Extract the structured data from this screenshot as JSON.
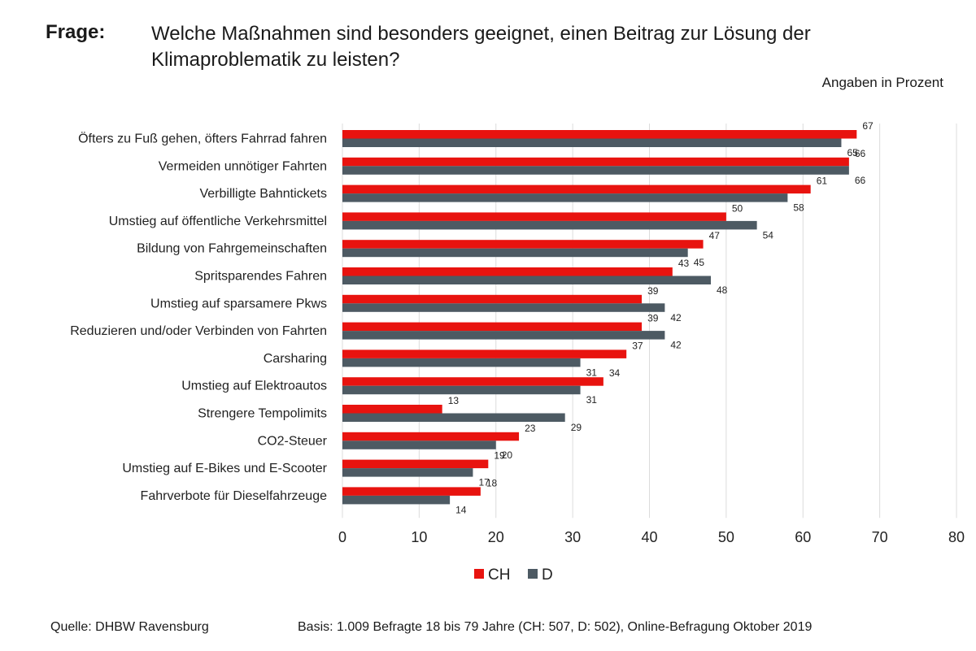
{
  "header": {
    "question_label": "Frage:",
    "question_text": "Welche Maßnahmen sind besonders geeignet, einen Beitrag zur Lösung der Klimaproblematik zu leisten?",
    "unit_note": "Angaben in Prozent"
  },
  "footer": {
    "source": "Quelle: DHBW Ravensburg",
    "basis": "Basis: 1.009 Befragte 18 bis 79 Jahre (CH: 507, D: 502),  Online-Befragung Oktober 2019"
  },
  "colors": {
    "CH": "#e8130f",
    "D": "#4d5a63",
    "grid": "#dcdcdc"
  },
  "chart_data": {
    "type": "bar",
    "orientation": "horizontal",
    "categories": [
      "Öfters zu Fuß gehen, öfters Fahrrad fahren",
      "Vermeiden unnötiger Fahrten",
      "Verbilligte Bahntickets",
      "Umstieg auf öffentliche Verkehrsmittel",
      "Bildung von Fahrgemeinschaften",
      "Spritsparendes Fahren",
      "Umstieg auf sparsamere Pkws",
      "Reduzieren und/oder Verbinden von Fahrten",
      "Carsharing",
      "Umstieg auf Elektroautos",
      "Strengere Tempolimits",
      "CO2-Steuer",
      "Umstieg auf E-Bikes und E-Scooter",
      "Fahrverbote für Dieselfahrzeuge"
    ],
    "series": [
      {
        "name": "CH",
        "values": [
          67,
          66,
          61,
          50,
          47,
          43,
          39,
          39,
          37,
          34,
          13,
          23,
          19,
          18
        ]
      },
      {
        "name": "D",
        "values": [
          65,
          66,
          58,
          54,
          45,
          48,
          42,
          42,
          31,
          31,
          29,
          20,
          17,
          14
        ]
      }
    ],
    "xlim": [
      0,
      80
    ],
    "xticks": [
      0,
      10,
      20,
      30,
      40,
      50,
      60,
      70,
      80
    ],
    "grid": true,
    "legend": "bottom-center"
  }
}
